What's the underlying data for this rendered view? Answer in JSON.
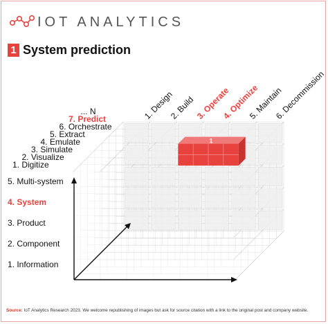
{
  "header": {
    "logo_text": "IOT ANALYTICS",
    "title_number": "1",
    "title": "System prediction"
  },
  "axes": {
    "value_stages": [
      {
        "label": "1. Digitize",
        "highlight": false
      },
      {
        "label": "2. Visualize",
        "highlight": false
      },
      {
        "label": "3. Simulate",
        "highlight": false
      },
      {
        "label": "4. Emulate",
        "highlight": false
      },
      {
        "label": "5. Extract",
        "highlight": false
      },
      {
        "label": "6. Orchestrate",
        "highlight": false
      },
      {
        "label": "7. Predict",
        "highlight": true
      },
      {
        "label": "... N",
        "highlight": false
      }
    ],
    "system_levels": [
      {
        "label": "5. Multi-system",
        "highlight": false
      },
      {
        "label": "4. System",
        "highlight": true
      },
      {
        "label": "3. Product",
        "highlight": false
      },
      {
        "label": "2. Component",
        "highlight": false
      },
      {
        "label": "1. Information",
        "highlight": false
      }
    ],
    "lifecycle_phases": [
      {
        "label": "1. Design",
        "highlight": false
      },
      {
        "label": "2. Build",
        "highlight": false
      },
      {
        "label": "3. Operate",
        "highlight": true
      },
      {
        "label": "4. Optimize",
        "highlight": true
      },
      {
        "label": "5. Maintain",
        "highlight": false
      },
      {
        "label": "6. Decommission",
        "highlight": false
      }
    ],
    "highlight_badge": "1"
  },
  "colors": {
    "accent": "#e8423f",
    "grid": "#c9c9c9",
    "face": "#efefef"
  },
  "footer": {
    "source_label": "Source:",
    "source_text": " IoT Analytics Research 2023. We welcome republishing of images but ask for source citation with a link to the original post and company website."
  }
}
